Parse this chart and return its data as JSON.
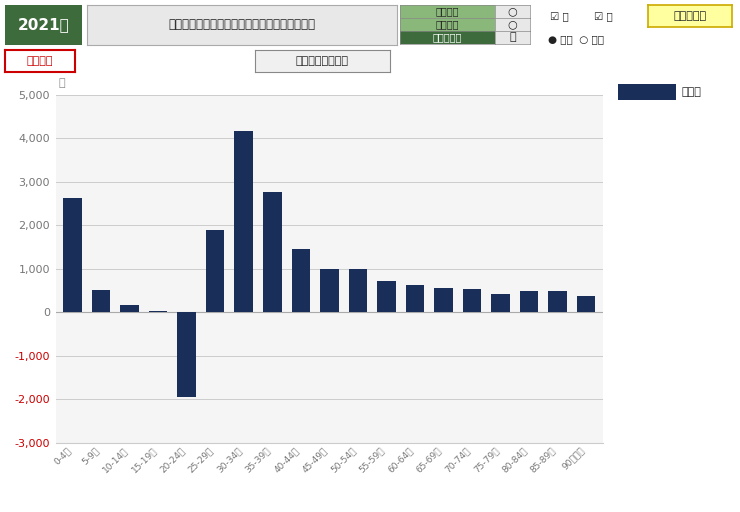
{
  "title": "埼玉県の東京都との年齢別純移動人口（男女）",
  "year": "2021年",
  "ylabel": "人",
  "categories": [
    "0-4歳",
    "5-9歳",
    "10-14歳",
    "15-19歳",
    "20-24歳",
    "25-29歳",
    "30-34歳",
    "35-39歳",
    "40-44歳",
    "45-49歳",
    "50-54歳",
    "55-59歳",
    "60-64歳",
    "65-69歳",
    "70-74歳",
    "75-79歳",
    "80-84歳",
    "85-89歳",
    "90歳以上"
  ],
  "values": [
    2620,
    520,
    170,
    30,
    -1950,
    1900,
    4170,
    2770,
    1450,
    990,
    990,
    730,
    620,
    560,
    530,
    420,
    490,
    500,
    380
  ],
  "bar_color": "#1a2e5a",
  "ylim": [
    -3000,
    5000
  ],
  "yticks": [
    -3000,
    -2000,
    -1000,
    0,
    1000,
    2000,
    3000,
    4000,
    5000
  ],
  "grid_color": "#cccccc",
  "bg_color": "#ffffff",
  "plot_bg_color": "#f5f5f5",
  "legend_label": "東京都",
  "header_bg": "#3d6b3c",
  "header_text": "#ffffff",
  "negative_tick_color": "#cc0000",
  "axis_label_color": "#888888",
  "tick_label_color": "#777777",
  "row1_labels": [
    "転入者数",
    "転出者数",
    "純移動人口"
  ],
  "row1_bg": [
    "#7aab5a",
    "#7aab5a",
    "#3d6b3c"
  ],
  "btn_graph_label": "グラフ拡大",
  "btn_graph_bg": "#ffffa0",
  "btn_graph_border": "#ccaa00",
  "ops_label": "操作方法",
  "ops_border": "#cc0000",
  "ops_text": "#cc0000",
  "jfn_label": "日本人及び外国人",
  "checkbox_labels": [
    "☑ 男",
    "☑ 女"
  ],
  "radio_labels": [
    "● 西暦",
    "○ 和暦"
  ]
}
